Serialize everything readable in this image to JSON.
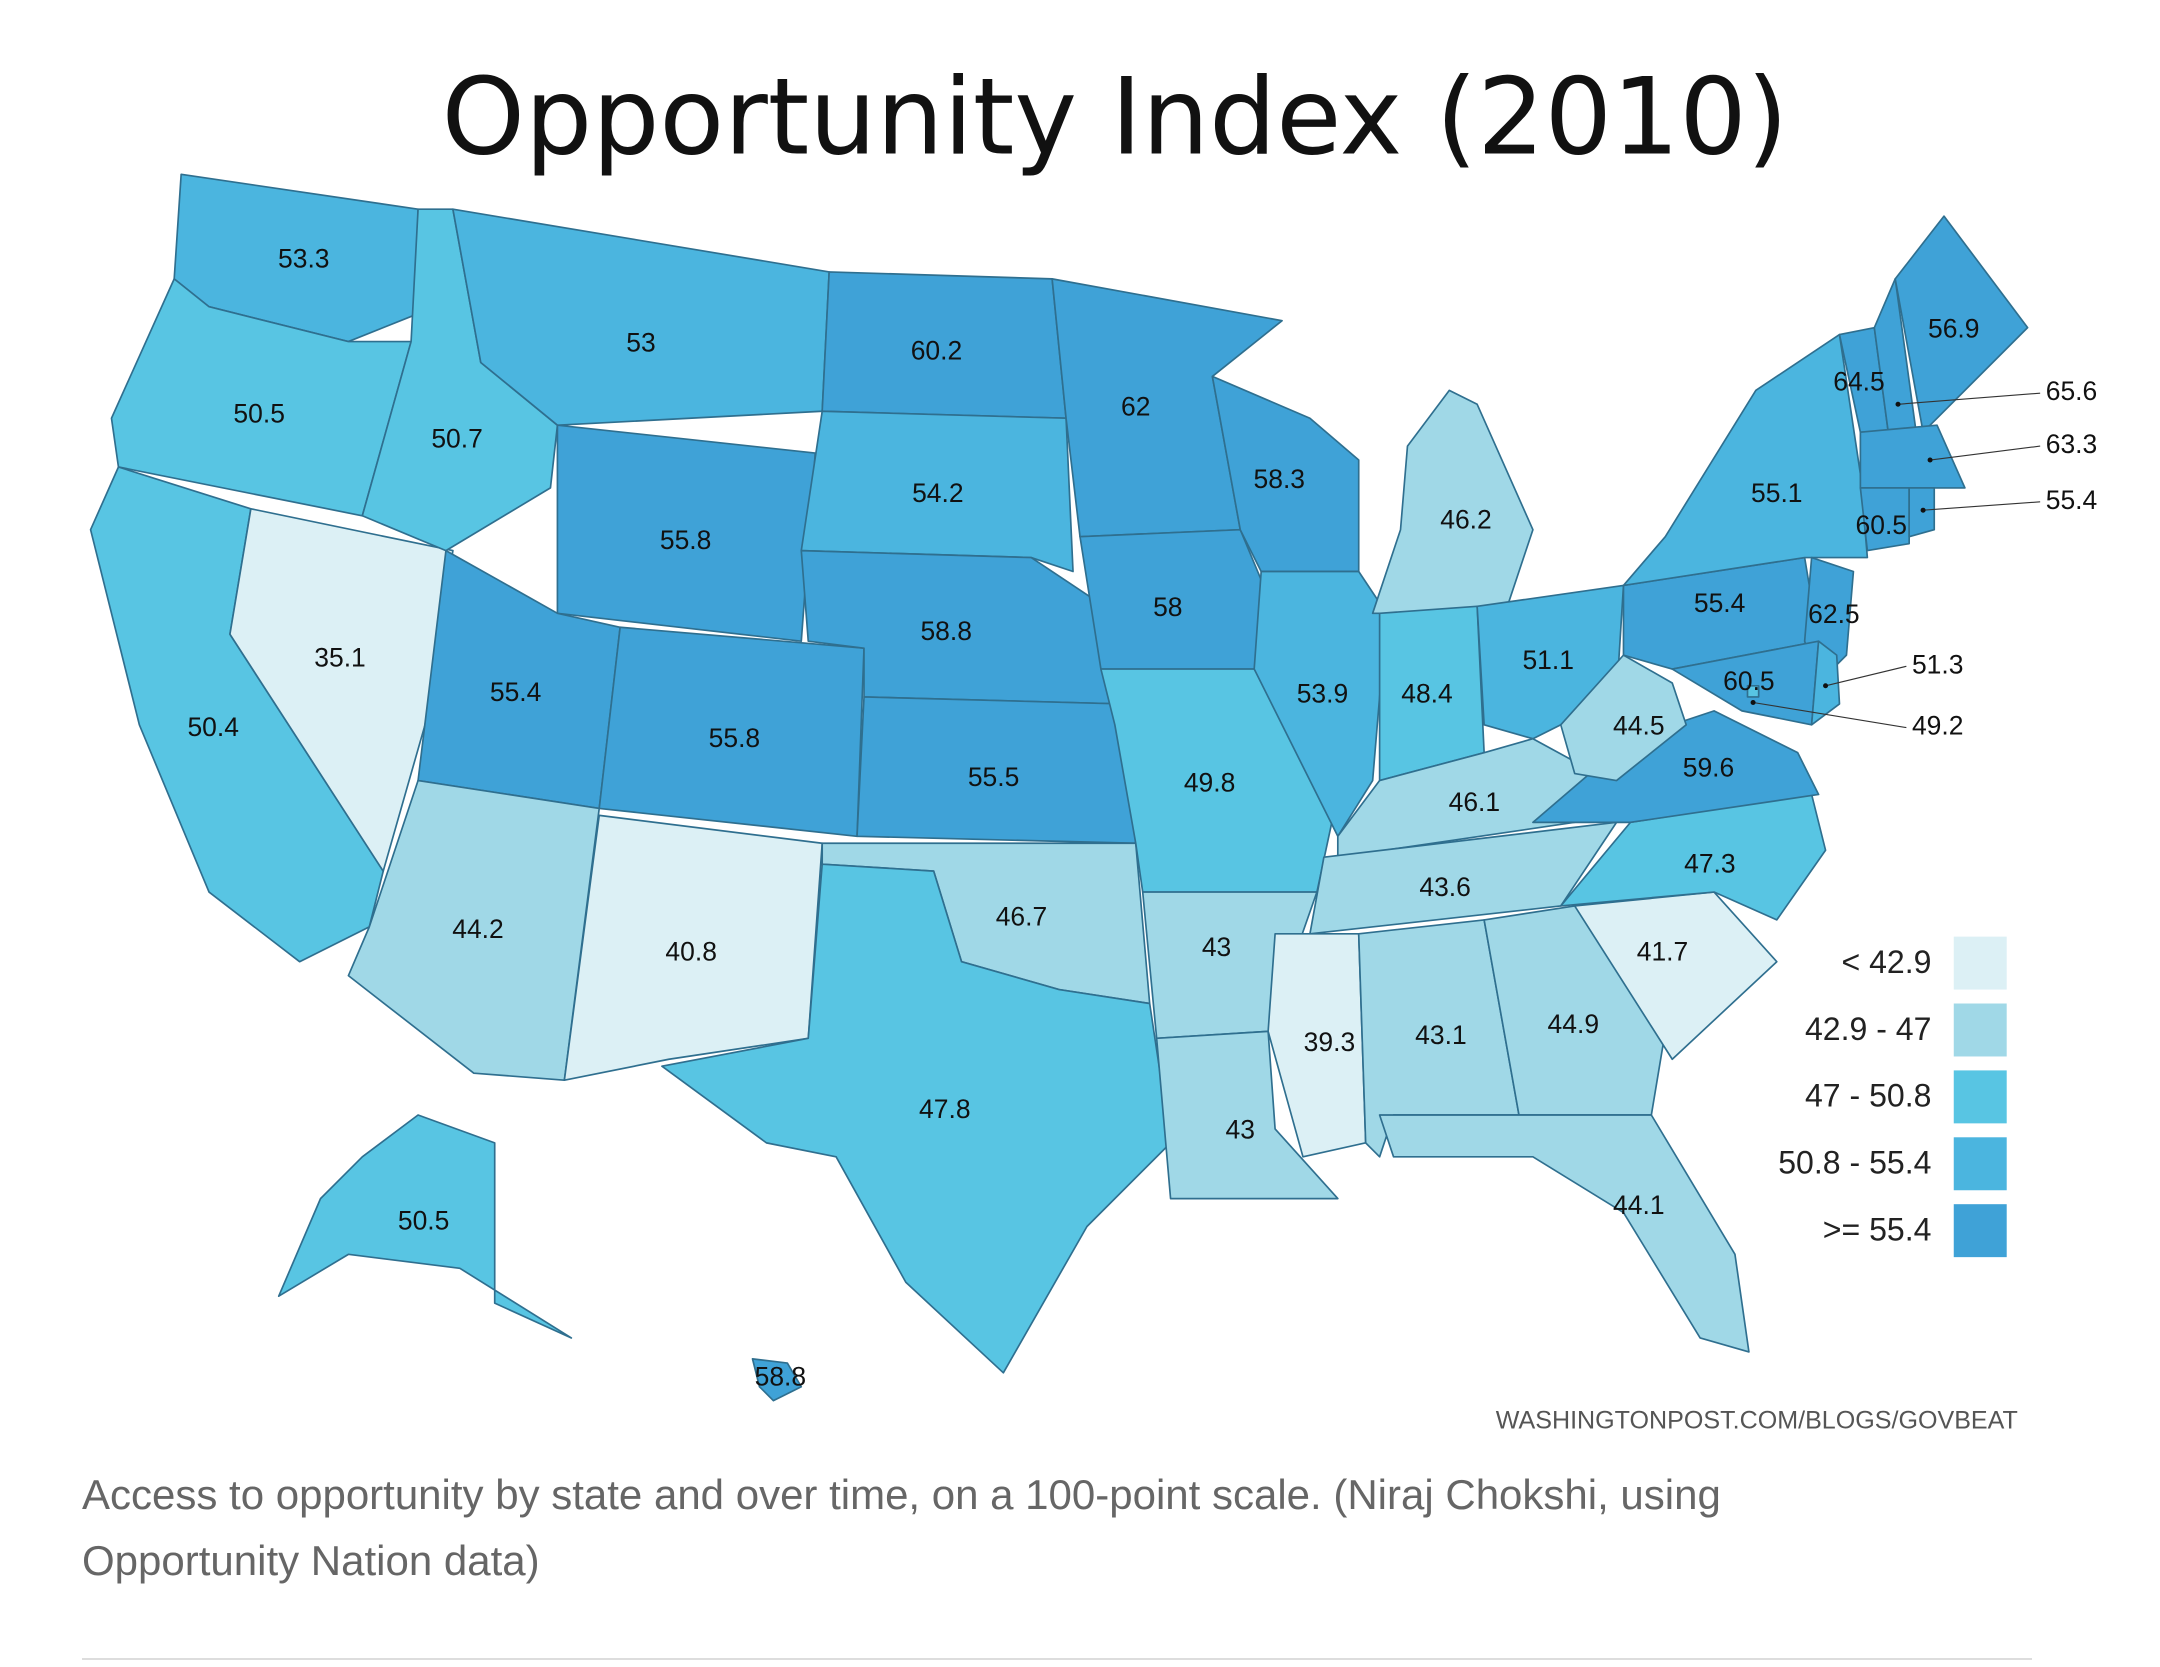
{
  "chart_data": {
    "type": "choropleth",
    "title": "Opportunity Index (2010)",
    "source": "WASHINGTONPOST.COM/BLOGS/GOVBEAT",
    "legend": [
      {
        "label": "< 42.9",
        "color": "#dcf0f5",
        "max": 42.9
      },
      {
        "label": "42.9 - 47",
        "color": "#a0d8e7",
        "max": 47
      },
      {
        "label": "47 - 50.8",
        "color": "#58c5e3",
        "max": 50.8
      },
      {
        "label": "50.8 - 55.4",
        "color": "#4bb5df",
        "max": 55.4
      },
      {
        "label": ">= 55.4",
        "color": "#3fa2d7",
        "max": 1000
      }
    ],
    "states": {
      "WA": "53.3",
      "OR": "50.5",
      "CA": "50.4",
      "NV": "35.1",
      "ID": "50.7",
      "MT": "53",
      "WY": "55.8",
      "UT": "55.4",
      "AZ": "44.2",
      "CO": "55.8",
      "NM": "40.8",
      "ND": "60.2",
      "SD": "54.2",
      "NE": "58.8",
      "KS": "55.5",
      "OK": "46.7",
      "TX": "47.8",
      "MN": "62",
      "IA": "58",
      "MO": "49.8",
      "AR": "43",
      "LA": "43",
      "WI": "58.3",
      "IL": "53.9",
      "MI": "46.2",
      "IN": "48.4",
      "OH": "51.1",
      "KY": "46.1",
      "TN": "43.6",
      "MS": "39.3",
      "AL": "43.1",
      "GA": "44.9",
      "FL": "44.1",
      "SC": "41.7",
      "NC": "47.3",
      "VA": "59.6",
      "WV": "44.5",
      "PA": "55.4",
      "NY": "55.1",
      "NJ": "62.5",
      "DE": "51.3",
      "MD": "60.5",
      "DC": "49.2",
      "VT": "64.5",
      "NH": "65.6",
      "ME": "56.9",
      "MA": "63.3",
      "CT": "60.5",
      "RI": "55.4",
      "AK": "50.5",
      "HI": "58.8"
    }
  },
  "caption": "Access to opportunity by state and over time, on a 100-point scale. (Niraj Chokshi, using Opportunity Nation data)"
}
